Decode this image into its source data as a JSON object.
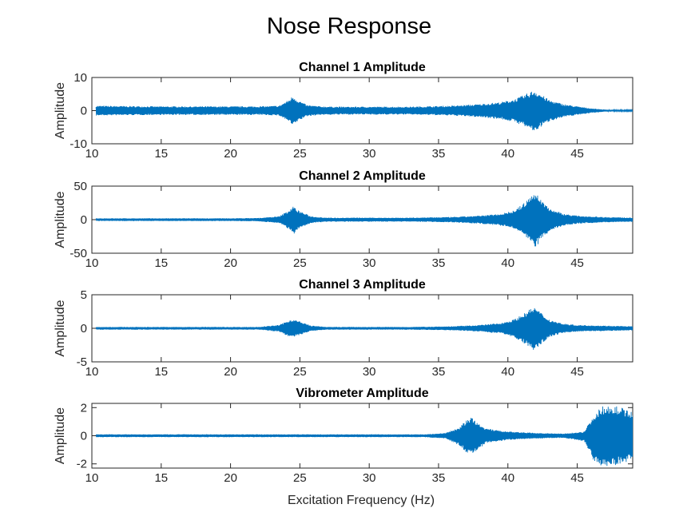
{
  "figure_title": "Nose Response",
  "xlabel": "Excitation Frequency (Hz)",
  "colors": {
    "signal": "#0072BD",
    "axis": "#262626",
    "background": "#ffffff"
  },
  "chart_data": [
    {
      "type": "line",
      "title": "Channel 1 Amplitude",
      "ylabel": "Amplitude",
      "xlim": [
        10,
        49
      ],
      "ylim": [
        -10,
        10
      ],
      "xticks": [
        10,
        15,
        20,
        25,
        30,
        35,
        40,
        45
      ],
      "yticks": [
        -10,
        0,
        10
      ],
      "series": [
        {
          "values_description": "envelope",
          "x": [
            10.3,
            12,
            15,
            18,
            20,
            22,
            23.5,
            24.2,
            24.5,
            24.8,
            25.5,
            26.5,
            28,
            30,
            33,
            36,
            38,
            39.5,
            40.5,
            41.3,
            41.9,
            42.3,
            43,
            44,
            45,
            46,
            47,
            49
          ],
          "upper": [
            1.5,
            1.4,
            1.3,
            1.3,
            1.3,
            1.3,
            1.5,
            3.3,
            4.5,
            3.4,
            1.7,
            1.3,
            1.2,
            1.2,
            1.2,
            1.5,
            2.0,
            2.6,
            3.5,
            5.0,
            6.3,
            5.2,
            3.2,
            2.0,
            1.3,
            0.7,
            0.3,
            0.2
          ],
          "lower": [
            -1.5,
            -1.4,
            -1.3,
            -1.3,
            -1.3,
            -1.3,
            -1.5,
            -3.3,
            -4.8,
            -3.4,
            -1.7,
            -1.3,
            -1.2,
            -1.2,
            -1.2,
            -1.5,
            -2.0,
            -2.6,
            -3.5,
            -5.0,
            -6.5,
            -5.2,
            -3.2,
            -2.0,
            -1.3,
            -0.7,
            -0.3,
            -0.2
          ]
        }
      ]
    },
    {
      "type": "line",
      "title": "Channel 2 Amplitude",
      "ylabel": "Amplitude",
      "xlim": [
        10,
        49
      ],
      "ylim": [
        -50,
        50
      ],
      "xticks": [
        10,
        15,
        20,
        25,
        30,
        35,
        40,
        45
      ],
      "yticks": [
        -50,
        0,
        50
      ],
      "series": [
        {
          "values_description": "envelope",
          "x": [
            10.3,
            15,
            20,
            22,
            23.5,
            24.2,
            24.5,
            24.9,
            25.8,
            27,
            30,
            33,
            36,
            38,
            39.5,
            40.5,
            41.3,
            41.9,
            42.3,
            43,
            44,
            45,
            47,
            49
          ],
          "upper": [
            2,
            2,
            2,
            2.5,
            5,
            14,
            20,
            14,
            5,
            3,
            3,
            3,
            4,
            6,
            9,
            14,
            27,
            42,
            33,
            17,
            9,
            6,
            4,
            3
          ],
          "lower": [
            -2,
            -2,
            -2,
            -2.5,
            -5,
            -14,
            -23,
            -14,
            -5,
            -3,
            -3,
            -3,
            -4,
            -6,
            -9,
            -14,
            -27,
            -44,
            -33,
            -17,
            -9,
            -6,
            -4,
            -3
          ]
        }
      ]
    },
    {
      "type": "line",
      "title": "Channel 3 Amplitude",
      "ylabel": "Amplitude",
      "xlim": [
        10,
        49
      ],
      "ylim": [
        -5,
        5
      ],
      "xticks": [
        10,
        15,
        20,
        25,
        30,
        35,
        40,
        45
      ],
      "yticks": [
        -5,
        0,
        5
      ],
      "series": [
        {
          "values_description": "envelope",
          "x": [
            10.3,
            15,
            20,
            22,
            23.5,
            24.2,
            24.5,
            24.9,
            25.8,
            27,
            30,
            33,
            36,
            38,
            39.5,
            40.5,
            41.3,
            41.9,
            42.3,
            43,
            44,
            45,
            47,
            49
          ],
          "upper": [
            0.2,
            0.2,
            0.2,
            0.2,
            0.5,
            1.2,
            1.4,
            1.1,
            0.4,
            0.2,
            0.2,
            0.2,
            0.3,
            0.5,
            0.8,
            1.4,
            2.4,
            3.3,
            2.5,
            1.3,
            0.7,
            0.5,
            0.4,
            0.3
          ],
          "lower": [
            -0.2,
            -0.2,
            -0.2,
            -0.2,
            -0.5,
            -1.2,
            -1.4,
            -1.1,
            -0.4,
            -0.2,
            -0.2,
            -0.2,
            -0.3,
            -0.5,
            -0.8,
            -1.4,
            -2.4,
            -3.3,
            -2.5,
            -1.3,
            -0.7,
            -0.5,
            -0.4,
            -0.3
          ]
        }
      ]
    },
    {
      "type": "line",
      "title": "Vibrometer Amplitude",
      "ylabel": "Amplitude",
      "xlim": [
        10,
        49
      ],
      "ylim": [
        -2.3,
        2.3
      ],
      "xticks": [
        10,
        15,
        20,
        25,
        30,
        35,
        40,
        45
      ],
      "yticks": [
        -2,
        0,
        2
      ],
      "series": [
        {
          "values_description": "envelope",
          "x": [
            10.3,
            15,
            20,
            25,
            30,
            34,
            35.5,
            36.5,
            37.1,
            37.4,
            37.8,
            38.5,
            40,
            42,
            44,
            45.5,
            46.2,
            46.8,
            47.5,
            48.2,
            49
          ],
          "upper": [
            0.1,
            0.1,
            0.1,
            0.1,
            0.1,
            0.1,
            0.2,
            0.6,
            1.2,
            1.3,
            0.9,
            0.5,
            0.3,
            0.2,
            0.15,
            0.3,
            1.5,
            2.1,
            2.2,
            2.0,
            1.7
          ],
          "lower": [
            -0.1,
            -0.1,
            -0.1,
            -0.1,
            -0.1,
            -0.1,
            -0.2,
            -0.7,
            -1.3,
            -1.4,
            -1.0,
            -0.5,
            -0.3,
            -0.2,
            -0.15,
            -0.4,
            -1.8,
            -2.2,
            -2.2,
            -2.0,
            -1.8
          ]
        }
      ]
    }
  ]
}
